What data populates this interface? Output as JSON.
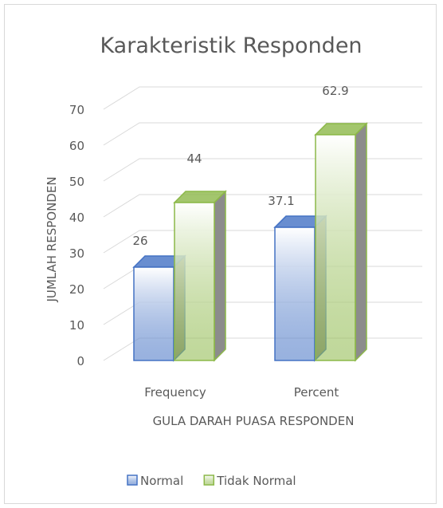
{
  "chart_data": {
    "type": "bar3d",
    "title": "Karakteristik Responden",
    "x_label": "GULA DARAH PUASA RESPONDEN",
    "y_label": "JUMLAH RESPONDEN",
    "categories": [
      "Frequency",
      "Percent"
    ],
    "series": [
      {
        "name": "Normal",
        "color": "#4472c4",
        "values": [
          26,
          37.1
        ]
      },
      {
        "name": "Tidak Normal",
        "color": "#8cb848",
        "values": [
          44,
          62.9
        ]
      }
    ],
    "ylim": [
      0,
      70
    ],
    "yticks": [
      0,
      10,
      20,
      30,
      40,
      50,
      60,
      70
    ],
    "grid": true,
    "legend": "bottom"
  }
}
